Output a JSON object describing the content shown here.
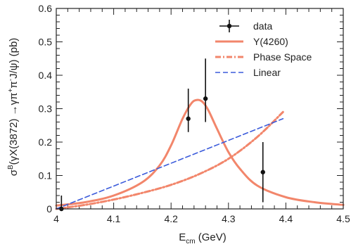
{
  "chart_data": {
    "type": "line",
    "title": "",
    "xlabel": "E",
    "xlabel_sub": "cm",
    "xlabel_unit": " (GeV)",
    "ylabel": "σ",
    "ylabel_sup": "B",
    "ylabel_rest": "(γX(3872) →γπ",
    "ylabel_sup2": "+",
    "ylabel_rest2": "π",
    "ylabel_sup3": "-",
    "ylabel_rest3": "J/ψ) (pb)",
    "xlim": [
      4.0,
      4.5
    ],
    "ylim": [
      0.0,
      0.6
    ],
    "xticks": [
      {
        "value": 4.0,
        "label": "4"
      },
      {
        "value": 4.1,
        "label": "4.1"
      },
      {
        "value": 4.2,
        "label": "4.2"
      },
      {
        "value": 4.3,
        "label": "4.3"
      },
      {
        "value": 4.4,
        "label": "4.4"
      },
      {
        "value": 4.5,
        "label": "4.5"
      }
    ],
    "yticks": [
      {
        "value": 0.0,
        "label": "0"
      },
      {
        "value": 0.1,
        "label": "0.1"
      },
      {
        "value": 0.2,
        "label": "0.2"
      },
      {
        "value": 0.3,
        "label": "0.3"
      },
      {
        "value": 0.4,
        "label": "0.4"
      },
      {
        "value": 0.5,
        "label": "0.5"
      },
      {
        "value": 0.6,
        "label": "0.6"
      }
    ],
    "grid": false,
    "legend_position": "top-right",
    "series": [
      {
        "name": "data",
        "kind": "errorbar",
        "color": "#111111",
        "points": [
          {
            "x": 4.009,
            "y": 0.0,
            "yerr_low": 0.0,
            "yerr_high": 0.04
          },
          {
            "x": 4.23,
            "y": 0.27,
            "yerr_low": 0.04,
            "yerr_high": 0.09
          },
          {
            "x": 4.26,
            "y": 0.33,
            "yerr_low": 0.07,
            "yerr_high": 0.12
          },
          {
            "x": 4.36,
            "y": 0.11,
            "yerr_low": 0.09,
            "yerr_high": 0.09
          }
        ]
      },
      {
        "name": "Y(4260)",
        "kind": "line",
        "style": "solid",
        "color": "#f2866b",
        "x": [
          4.0,
          4.05,
          4.1,
          4.15,
          4.18,
          4.2,
          4.22,
          4.235,
          4.245,
          4.255,
          4.265,
          4.28,
          4.3,
          4.32,
          4.35,
          4.4,
          4.45,
          4.5
        ],
        "y": [
          0.01,
          0.02,
          0.04,
          0.08,
          0.13,
          0.19,
          0.27,
          0.315,
          0.326,
          0.32,
          0.295,
          0.24,
          0.17,
          0.12,
          0.07,
          0.035,
          0.02,
          0.012
        ]
      },
      {
        "name": "Phase Space",
        "kind": "line",
        "style": "dashdot",
        "color": "#f2866b",
        "x": [
          4.0,
          4.05,
          4.1,
          4.15,
          4.2,
          4.25,
          4.3,
          4.35,
          4.395
        ],
        "y": [
          0.0,
          0.012,
          0.028,
          0.048,
          0.072,
          0.105,
          0.15,
          0.215,
          0.29
        ]
      },
      {
        "name": "Linear",
        "kind": "line",
        "style": "dashed",
        "color": "#3b5bdb",
        "x": [
          4.0,
          4.395
        ],
        "y": [
          0.0,
          0.27
        ]
      }
    ]
  }
}
